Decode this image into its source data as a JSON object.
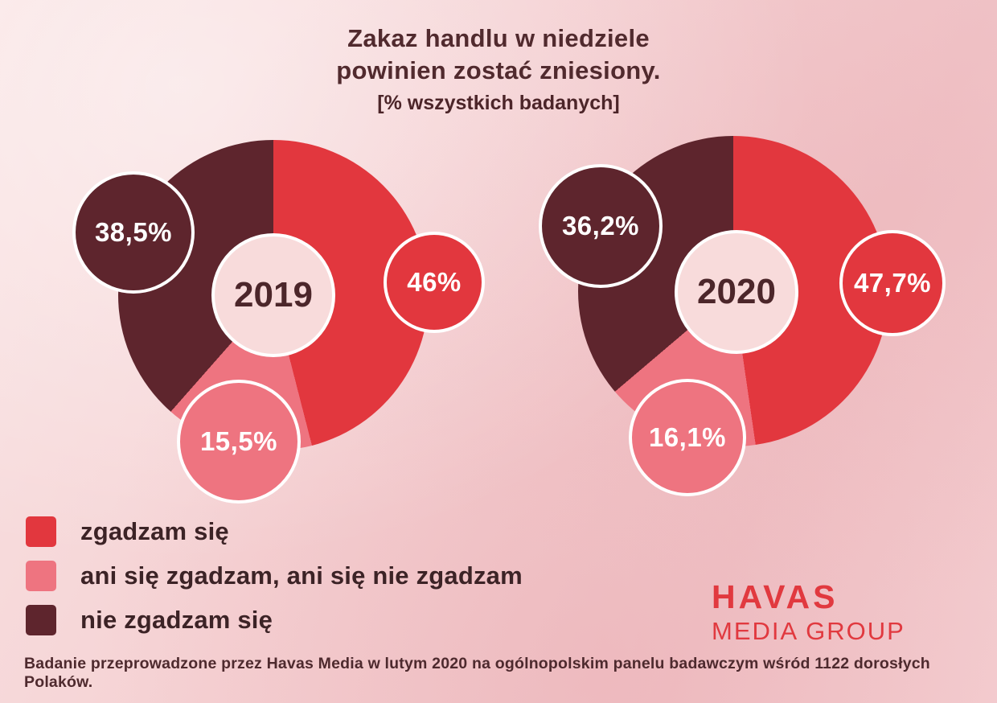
{
  "title": {
    "line1": "Zakaz handlu w niedziele",
    "line2": "powinien zostać zniesiony.",
    "subtitle": "[% wszystkich badanych]"
  },
  "chart_data": [
    {
      "type": "pie",
      "title": "2019",
      "categories": [
        "zgadzam się",
        "ani się zgadzam, ani się nie zgadzam",
        "nie zgadzam się"
      ],
      "values": [
        46,
        15.5,
        38.5
      ],
      "value_labels": [
        "46%",
        "15,5%",
        "38,5%"
      ],
      "colors": [
        "#e2373e",
        "#ee7480",
        "#5e252d"
      ],
      "unit": "%",
      "layout": "donut, segments start at 12 o'clock clockwise: agree, neither, disagree"
    },
    {
      "type": "pie",
      "title": "2020",
      "categories": [
        "zgadzam się",
        "ani się zgadzam, ani się nie zgadzam",
        "nie zgadzam się"
      ],
      "values": [
        47.7,
        16.1,
        36.2
      ],
      "value_labels": [
        "47,7%",
        "16,1%",
        "36,2%"
      ],
      "colors": [
        "#e2373e",
        "#ee7480",
        "#5e252d"
      ],
      "unit": "%",
      "layout": "donut, segments start at 12 o'clock clockwise: agree, neither, disagree"
    }
  ],
  "legend": {
    "position": "bottom-left",
    "items": [
      {
        "label": "zgadzam się",
        "color": "#e2373e"
      },
      {
        "label": "ani się zgadzam, ani się nie zgadzam",
        "color": "#ee7480"
      },
      {
        "label": "nie zgadzam się",
        "color": "#5e252d"
      }
    ]
  },
  "logo": {
    "line1": "HAVAS",
    "line2": "MEDIA GROUP",
    "color": "#e1393f"
  },
  "footer": "Badanie przeprowadzone przez Havas Media w lutym 2020 na ogólnopolskim panelu badawczym wśród 1122 dorosłych Polaków."
}
